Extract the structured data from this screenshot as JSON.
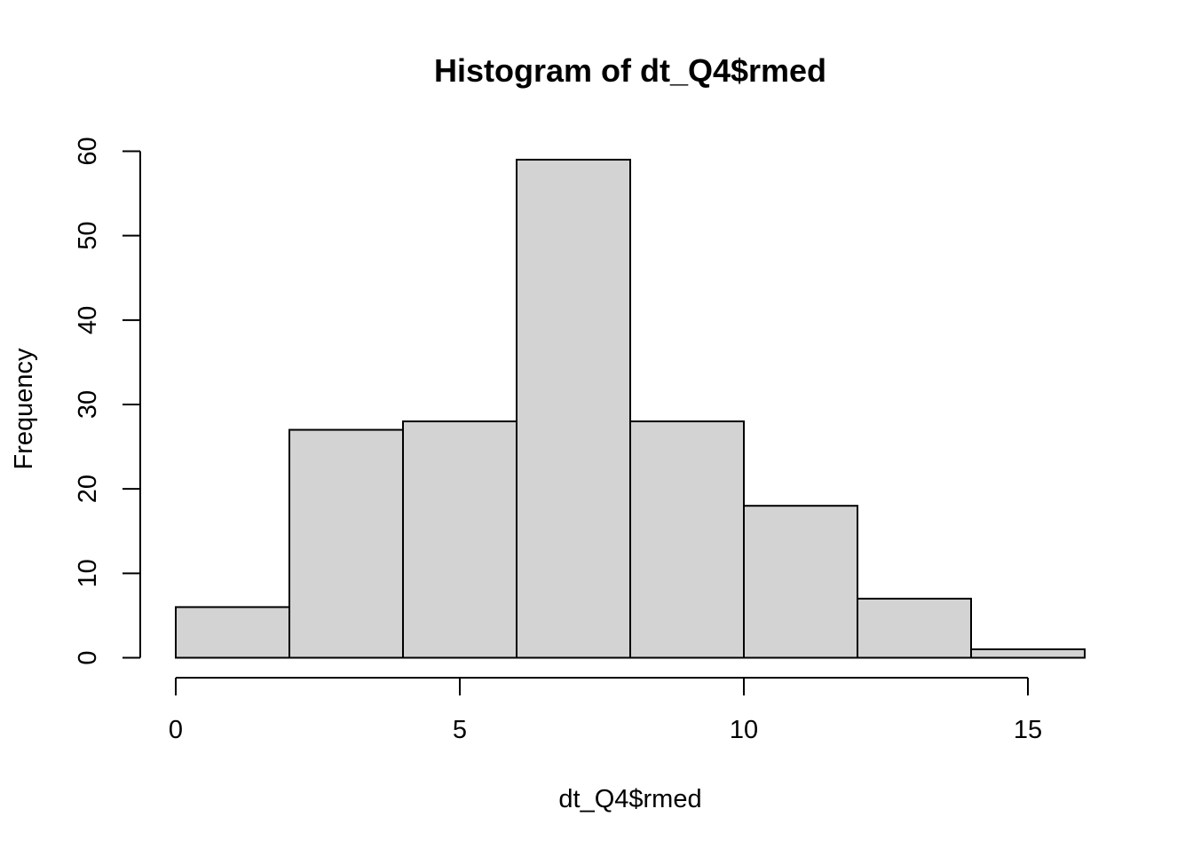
{
  "chart_data": {
    "type": "bar",
    "title": "Histogram of dt_Q4$rmed",
    "xlabel": "dt_Q4$rmed",
    "ylabel": "Frequency",
    "bins": [
      {
        "start": 0,
        "end": 2,
        "count": 6
      },
      {
        "start": 2,
        "end": 4,
        "count": 27
      },
      {
        "start": 4,
        "end": 6,
        "count": 28
      },
      {
        "start": 6,
        "end": 8,
        "count": 59
      },
      {
        "start": 8,
        "end": 10,
        "count": 28
      },
      {
        "start": 10,
        "end": 12,
        "count": 18
      },
      {
        "start": 12,
        "end": 14,
        "count": 7
      },
      {
        "start": 14,
        "end": 16,
        "count": 1
      }
    ],
    "xlim": [
      0,
      16
    ],
    "ylim": [
      0,
      60
    ],
    "x_ticks": [
      0,
      5,
      10,
      15
    ],
    "x_tick_labels": [
      "0",
      "5",
      "10",
      "15"
    ],
    "y_ticks": [
      0,
      10,
      20,
      30,
      40,
      50,
      60
    ],
    "y_tick_labels": [
      "0",
      "10",
      "20",
      "30",
      "40",
      "50",
      "60"
    ],
    "grid": false,
    "bar_fill": "#d3d3d3",
    "bar_stroke": "#000000"
  }
}
